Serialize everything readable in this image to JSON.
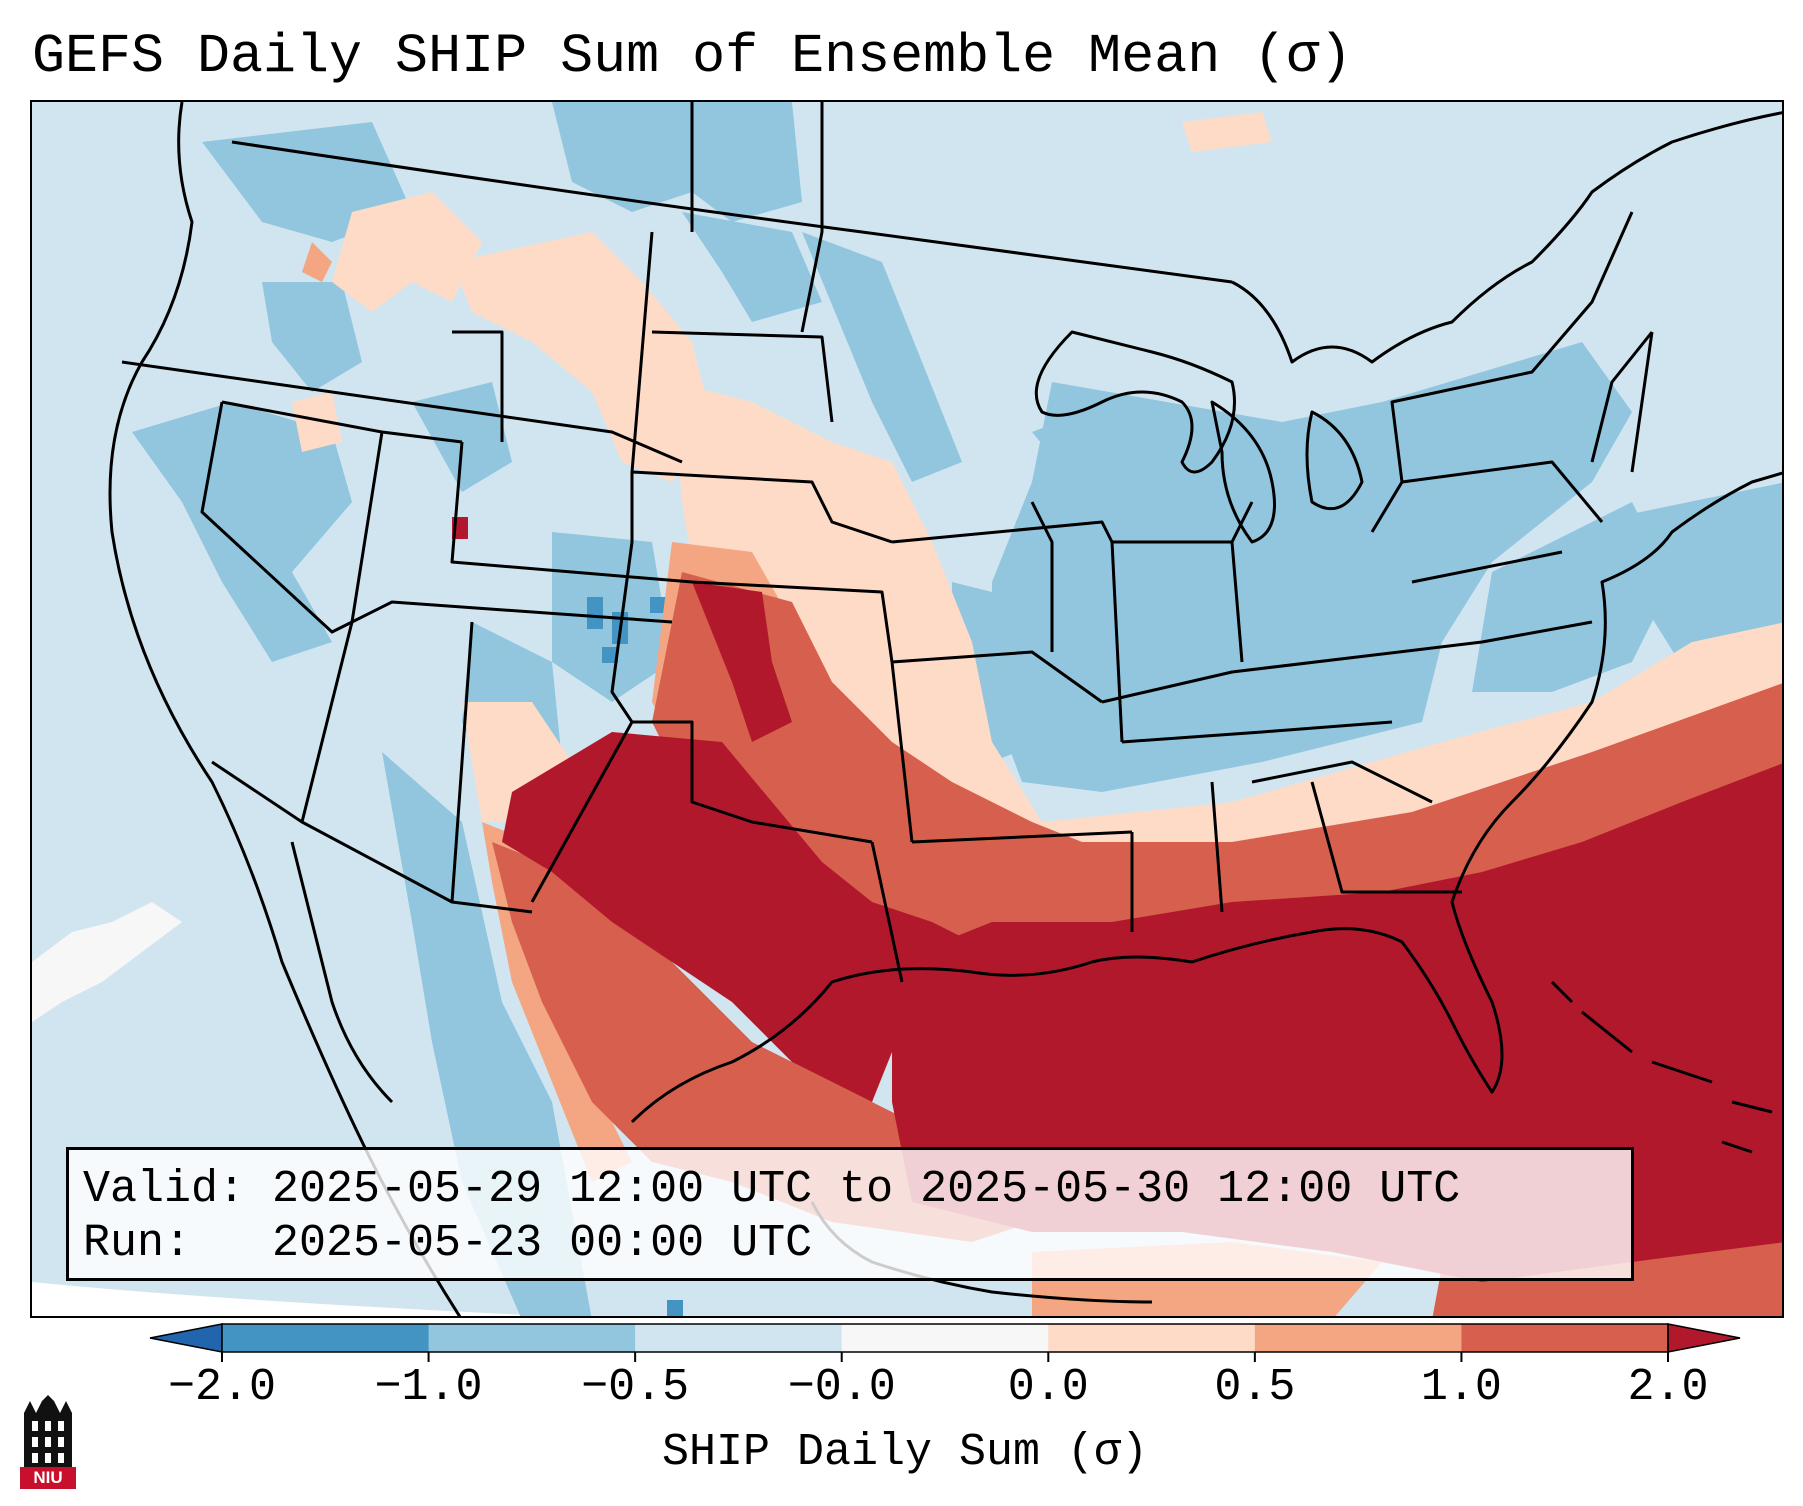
{
  "title": "GEFS Daily SHIP Sum of Ensemble Mean (σ)",
  "valid_line": "Valid: 2025-05-29 12:00 UTC to 2025-05-30 12:00 UTC",
  "run_line": "Run:   2025-05-23 00:00 UTC",
  "colorbar": {
    "label": "SHIP Daily Sum (σ)",
    "ticks": [
      "−2.0",
      "−1.0",
      "−0.5",
      "−0.0",
      "0.0",
      "0.5",
      "1.0",
      "2.0"
    ],
    "bins": [
      {
        "from": -2.0,
        "to": -1.0,
        "color": "#4393c3"
      },
      {
        "from": -1.0,
        "to": -0.5,
        "color": "#92c5de"
      },
      {
        "from": -0.5,
        "to": 0.0,
        "color": "#d1e5f0"
      },
      {
        "from": 0.0,
        "to": 0.0,
        "color": "#f7f7f7"
      },
      {
        "from": 0.0,
        "to": 0.5,
        "color": "#fddbc7"
      },
      {
        "from": 0.5,
        "to": 1.0,
        "color": "#f4a582"
      },
      {
        "from": 1.0,
        "to": 2.0,
        "color": "#d6604d"
      }
    ],
    "under_color": "#2166ac",
    "over_color": "#b2182b"
  },
  "logo": {
    "text": "NIU"
  }
}
